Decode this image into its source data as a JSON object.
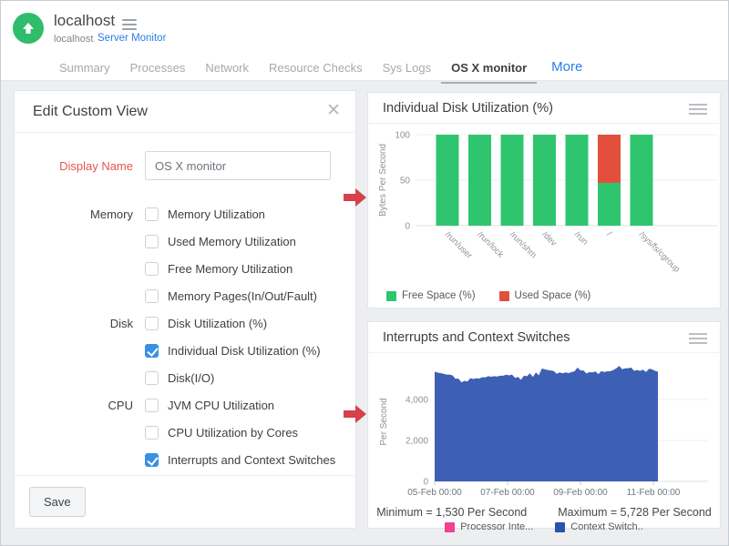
{
  "header": {
    "app_title": "localhost",
    "breadcrumb": {
      "host": "localhost",
      "link": "Server Monitor"
    },
    "tabs": [
      {
        "label": "Summary",
        "active": false
      },
      {
        "label": "Processes",
        "active": false
      },
      {
        "label": "Network",
        "active": false
      },
      {
        "label": "Resource Checks",
        "active": false
      },
      {
        "label": "Sys Logs",
        "active": false
      },
      {
        "label": "OS X monitor",
        "active": true
      }
    ],
    "more_label": "More"
  },
  "edit_panel": {
    "title": "Edit Custom View",
    "close_icon": "close-x",
    "display_name_label": "Display Name",
    "display_name_value": "OS X monitor",
    "groups": [
      {
        "label": "Memory",
        "items": [
          {
            "label": "Memory Utilization",
            "checked": false
          },
          {
            "label": "Used Memory Utilization",
            "checked": false
          },
          {
            "label": "Free Memory Utilization",
            "checked": false
          },
          {
            "label": "Memory Pages(In/Out/Fault)",
            "checked": false
          }
        ]
      },
      {
        "label": "Disk",
        "items": [
          {
            "label": "Disk Utilization (%)",
            "checked": false
          },
          {
            "label": "Individual Disk Utilization (%)",
            "checked": true
          },
          {
            "label": "Disk(I/O)",
            "checked": false
          }
        ]
      },
      {
        "label": "CPU",
        "items": [
          {
            "label": "JVM CPU Utilization",
            "checked": false
          },
          {
            "label": "CPU Utilization by Cores",
            "checked": false
          },
          {
            "label": "Interrupts and Context Switches",
            "checked": true
          }
        ]
      }
    ],
    "save_label": "Save"
  },
  "chart1": {
    "title": "Individual Disk Utilization (%)",
    "legend": [
      {
        "label": "Free Space (%)",
        "color": "#2fc56f"
      },
      {
        "label": "Used Space (%)",
        "color": "#e2503d"
      }
    ]
  },
  "chart2": {
    "title": "Interrupts and Context Switches",
    "minimum_text": "Minimum = 1,530 Per Second",
    "maximum_text": "Maximum = 5,728 Per Second",
    "legend": [
      {
        "label": "Processor Inte...",
        "color": "#f2418f"
      },
      {
        "label": "Context Switch..",
        "color": "#2c51b0"
      }
    ]
  },
  "chart_data": [
    {
      "type": "bar",
      "stacked": true,
      "title": "Individual Disk Utilization (%)",
      "ylabel": "Bytes Per Second",
      "ylim": [
        0,
        100
      ],
      "yticks": [
        0,
        50,
        100
      ],
      "grid": true,
      "legend_position": "bottom",
      "categories": [
        "/run/user",
        "/run/lock",
        "/run/shm",
        "/dev",
        "/run",
        "/",
        "/sys/fs/cgroup"
      ],
      "series": [
        {
          "name": "Free Space (%)",
          "color": "#2fc56f",
          "values": [
            100,
            100,
            100,
            100,
            100,
            47,
            100
          ]
        },
        {
          "name": "Used Space (%)",
          "color": "#e2503d",
          "values": [
            0,
            0,
            0,
            0,
            0,
            53,
            0
          ]
        }
      ]
    },
    {
      "type": "area",
      "title": "Interrupts and Context Switches",
      "ylabel": "Per Second",
      "ylim": [
        0,
        6200
      ],
      "yticks": [
        0,
        2000,
        4000
      ],
      "ytick_labels": [
        "0",
        "2,000",
        "4,000"
      ],
      "xticks": [
        "05-Feb 00:00",
        "07-Feb 00:00",
        "09-Feb 00:00",
        "11-Feb 00:00"
      ],
      "grid": true,
      "legend_position": "bottom",
      "minimum": 1530,
      "maximum": 5728,
      "series": [
        {
          "name": "Context Switch..",
          "color": "#3d5fb4",
          "values": [
            5300,
            5350,
            5250,
            5320,
            5180,
            5260,
            5120,
            5050,
            4980,
            4900,
            4870,
            4920,
            4980,
            5040,
            5000,
            5080,
            5050,
            5120,
            5080,
            5150,
            5100,
            5180,
            5120,
            5200,
            5150,
            5220,
            5180,
            5120,
            5060,
            5000,
            5100,
            5180,
            5240,
            5160,
            5280,
            5220,
            5450,
            5520,
            5400,
            5480,
            5350,
            5300,
            5260,
            5320,
            5280,
            5350,
            5300,
            5420,
            5500,
            5460,
            5380,
            5330,
            5300,
            5360,
            5310,
            5280,
            5350,
            5400,
            5340,
            5420,
            5380,
            5560,
            5600,
            5540,
            5480,
            5560,
            5500,
            5440,
            5400,
            5460,
            5420,
            5380,
            5440,
            5520,
            5360,
            5420
          ]
        }
      ]
    }
  ],
  "colors": {
    "logo_green": "#2ebd6b",
    "link_blue": "#2b7de9",
    "label_red": "#e4574e",
    "checkbox_blue": "#3a8fe4",
    "arrow_red": "#d6414b",
    "bar_green": "#2fc56f",
    "bar_red": "#e2503d",
    "area_blue": "#3d5fb4",
    "legend_pink": "#f2418f",
    "background": "#eceef0"
  },
  "icons": {
    "logo": "up-arrow-circle-icon",
    "title_menu": "hamburger-icon",
    "dialog_close": "close-icon",
    "chart_menu": "hamburger-icon",
    "pointer": "red-arrow-right-icon"
  }
}
